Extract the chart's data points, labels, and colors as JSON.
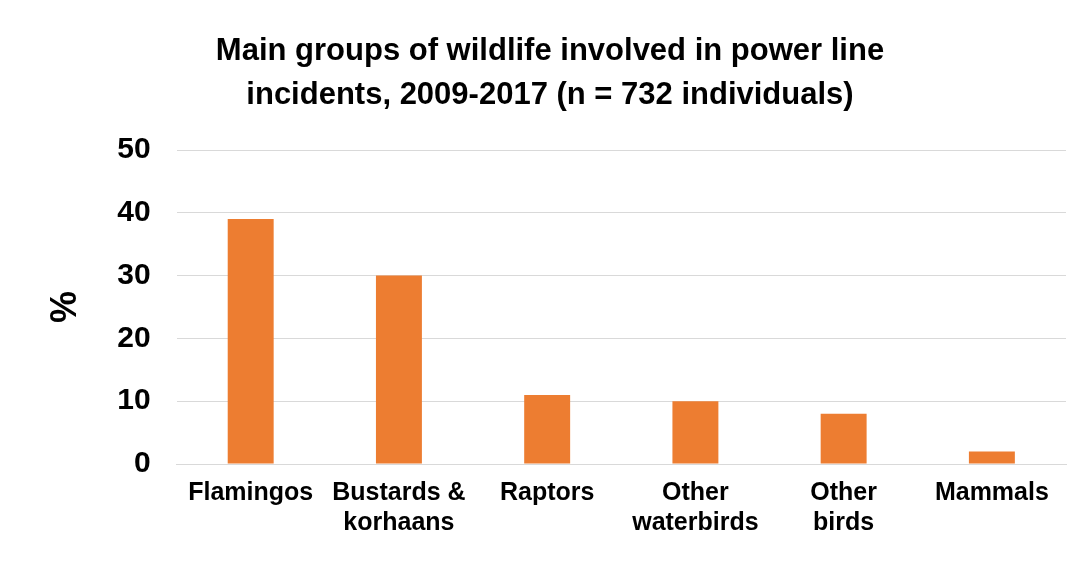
{
  "chart_data": {
    "type": "bar",
    "title": "Main groups of wildlife involved in power line incidents, 2009-2017 (n = 732 individuals)",
    "ylabel": "%",
    "categories": [
      "Flamingos",
      "Bustards & korhaans",
      "Raptors",
      "Other waterbirds",
      "Other birds",
      "Mammals"
    ],
    "values": [
      39,
      30,
      11,
      10,
      8,
      2
    ],
    "color": "#ed7d31",
    "ylim": [
      0,
      50
    ],
    "yticks": [
      0,
      10,
      20,
      30,
      40,
      50
    ],
    "grid": "y",
    "legend": false
  }
}
